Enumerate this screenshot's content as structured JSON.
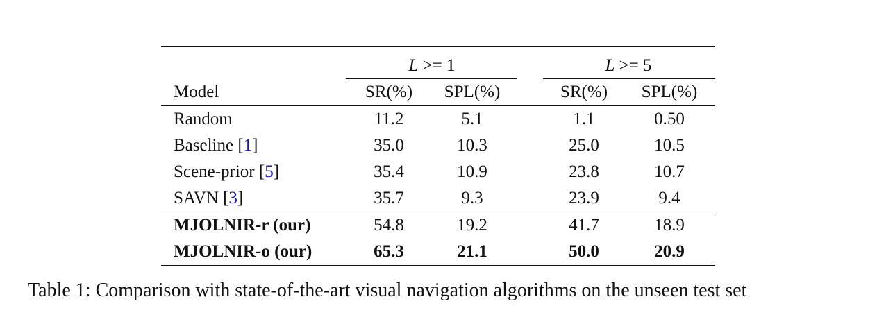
{
  "table": {
    "group_headers": {
      "g1_var": "L",
      "g1_op": ">= 1",
      "g2_var": "L",
      "g2_op": ">= 5"
    },
    "columns": [
      "Model",
      "SR(%)",
      "SPL(%)",
      "SR(%)",
      "SPL(%)"
    ],
    "rows": [
      {
        "model": "Random",
        "cite": "",
        "cells": [
          "11.2",
          "5.1",
          "1.1",
          "0.50"
        ]
      },
      {
        "model": "Baseline [",
        "cite": "1",
        "cells": [
          "35.0",
          "10.3",
          "25.0",
          "10.5"
        ]
      },
      {
        "model": "Scene-prior [",
        "cite": "5",
        "cells": [
          "35.4",
          "10.9",
          "23.8",
          "10.7"
        ]
      },
      {
        "model": "SAVN [",
        "cite": "3",
        "cells": [
          "35.7",
          "9.3",
          "23.9",
          "9.4"
        ]
      },
      {
        "model": "MJOLNIR-r (our)",
        "cite": "",
        "cells": [
          "54.8",
          "19.2",
          "41.7",
          "18.9"
        ]
      },
      {
        "model": "MJOLNIR-o (our)",
        "cite": "",
        "cells": [
          "65.3",
          "21.1",
          "50.0",
          "20.9"
        ]
      }
    ],
    "cite_close": "]"
  },
  "caption": "Table 1: Comparison with state-of-the-art visual navigation algorithms on the unseen test set"
}
